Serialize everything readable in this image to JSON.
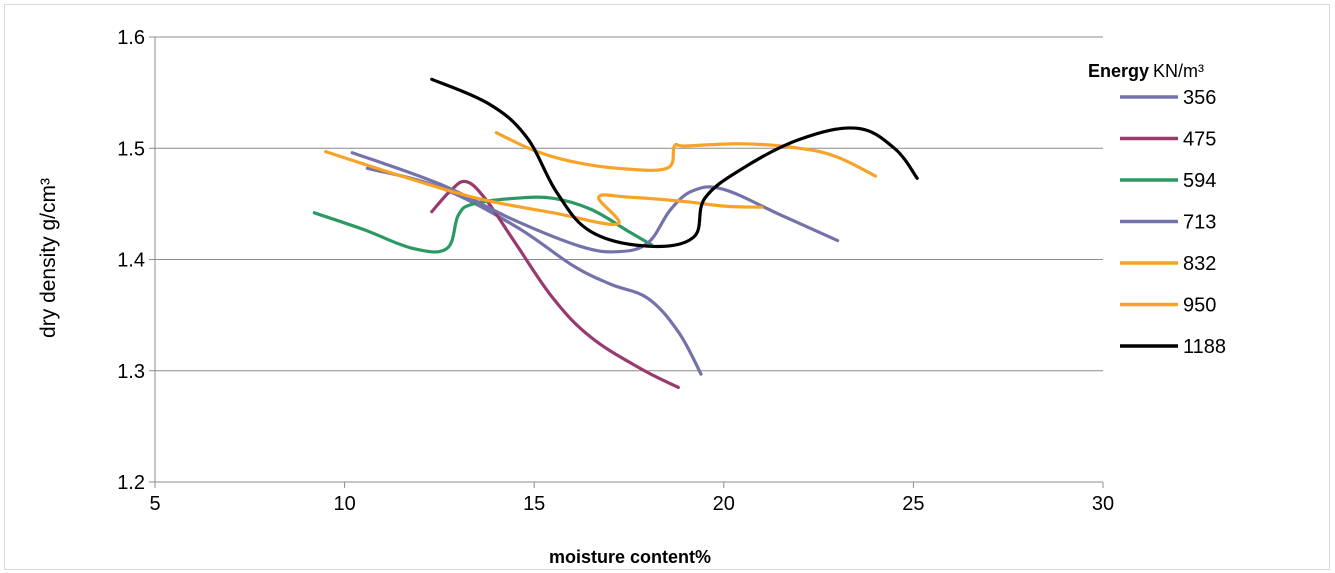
{
  "chart_data": {
    "type": "line",
    "title": "",
    "xlabel": "moisture content%",
    "ylabel": "dry density g/cm³",
    "xlim": [
      5,
      30
    ],
    "ylim": [
      1.2,
      1.6
    ],
    "xticks": [
      "5",
      "10",
      "15",
      "20",
      "25",
      "30"
    ],
    "yticks": [
      "1.2",
      "1.3",
      "1.4",
      "1.5",
      "1.6"
    ],
    "grid": "horizontal",
    "legend_position": "right",
    "legend_title_bold": "Energy",
    "legend_title_unit": "KN/m³",
    "series": [
      {
        "name": "356",
        "color": "#7472ab",
        "x": [
          10.6,
          12.5,
          14.5,
          16.0,
          17.0,
          18.0,
          18.8,
          19.4
        ],
        "y": [
          1.482,
          1.465,
          1.43,
          1.395,
          1.378,
          1.365,
          1.335,
          1.297
        ]
      },
      {
        "name": "475",
        "color": "#983a6e",
        "x": [
          12.3,
          12.8,
          13.2,
          13.7,
          14.5,
          15.5,
          16.5,
          17.8,
          18.8
        ],
        "y": [
          1.443,
          1.462,
          1.47,
          1.455,
          1.415,
          1.365,
          1.33,
          1.302,
          1.285
        ]
      },
      {
        "name": "594",
        "color": "#2b9a62",
        "x": [
          9.2,
          10.5,
          11.8,
          12.7,
          13.0,
          13.4,
          14.5,
          15.5,
          16.5,
          17.5,
          18.1
        ],
        "y": [
          1.442,
          1.427,
          1.41,
          1.41,
          1.44,
          1.45,
          1.455,
          1.455,
          1.445,
          1.425,
          1.413
        ]
      },
      {
        "name": "713",
        "color": "#7472ab",
        "x": [
          10.2,
          12.5,
          14.5,
          16.2,
          17.2,
          18.0,
          18.6,
          19.2,
          20.0,
          21.5,
          23.0
        ],
        "y": [
          1.496,
          1.468,
          1.435,
          1.412,
          1.407,
          1.415,
          1.445,
          1.462,
          1.463,
          1.44,
          1.417
        ]
      },
      {
        "name": "832",
        "color": "#f7a327",
        "x": [
          9.5,
          11.5,
          13.5,
          15.5,
          17.2,
          16.7,
          17.5,
          19.0,
          20.0,
          21.0
        ],
        "y": [
          1.497,
          1.475,
          1.455,
          1.442,
          1.432,
          1.456,
          1.456,
          1.452,
          1.448,
          1.447
        ]
      },
      {
        "name": "950",
        "color": "#f7a327",
        "x": [
          14.0,
          15.0,
          16.0,
          17.2,
          18.5,
          18.7,
          19.0,
          20.5,
          22.0,
          23.0,
          24.0
        ],
        "y": [
          1.514,
          1.498,
          1.488,
          1.482,
          1.482,
          1.502,
          1.502,
          1.504,
          1.5,
          1.492,
          1.475
        ]
      },
      {
        "name": "1188",
        "color": "#000000",
        "x": [
          12.3,
          13.8,
          14.8,
          15.6,
          16.5,
          18.0,
          19.2,
          19.5,
          20.5,
          22.0,
          23.5,
          24.5,
          25.1
        ],
        "y": [
          1.562,
          1.54,
          1.51,
          1.46,
          1.425,
          1.412,
          1.42,
          1.455,
          1.482,
          1.508,
          1.518,
          1.5,
          1.473
        ]
      }
    ]
  }
}
